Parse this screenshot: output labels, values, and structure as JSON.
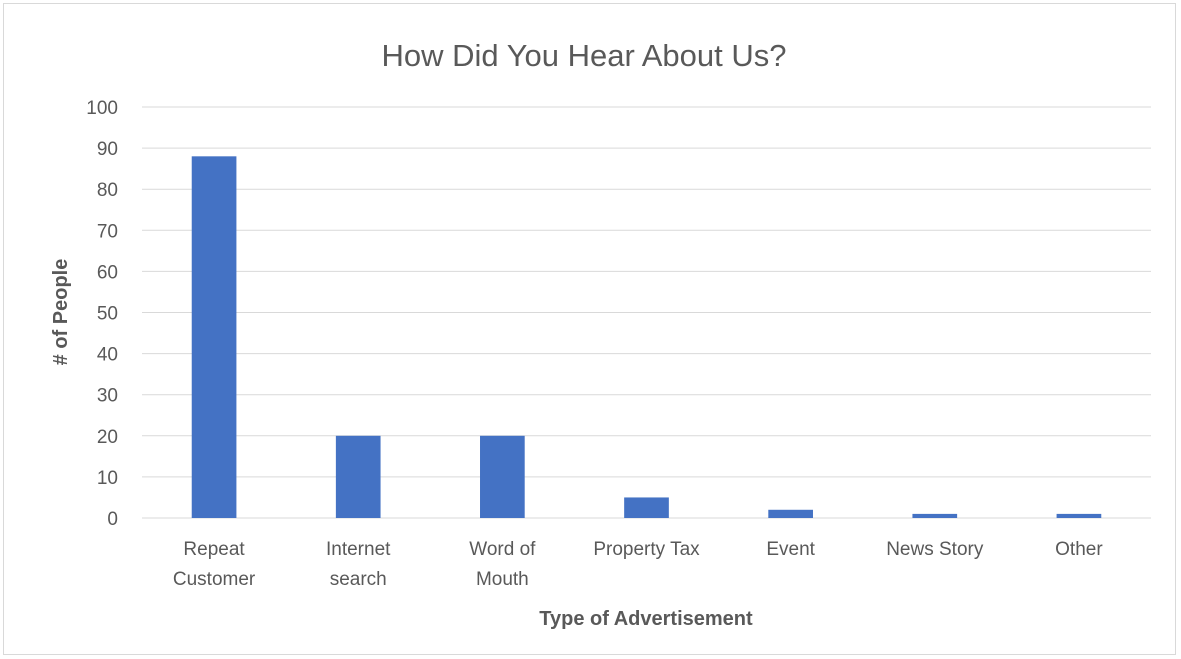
{
  "chart_data": {
    "type": "bar",
    "title": "How Did You Hear About Us?",
    "xlabel": "Type of Advertisement",
    "ylabel": "# of People",
    "categories": [
      [
        "Repeat",
        "Customer"
      ],
      [
        "Internet",
        "search"
      ],
      [
        "Word of",
        "Mouth"
      ],
      [
        "Property Tax"
      ],
      [
        "Event"
      ],
      [
        "News Story"
      ],
      [
        "Other"
      ]
    ],
    "values": [
      88,
      20,
      20,
      5,
      2,
      1,
      1
    ],
    "ylim": [
      0,
      100
    ],
    "yticks": [
      0,
      10,
      20,
      30,
      40,
      50,
      60,
      70,
      80,
      90,
      100
    ],
    "grid": true,
    "legend": "none",
    "bar_color": "#4472c4"
  }
}
